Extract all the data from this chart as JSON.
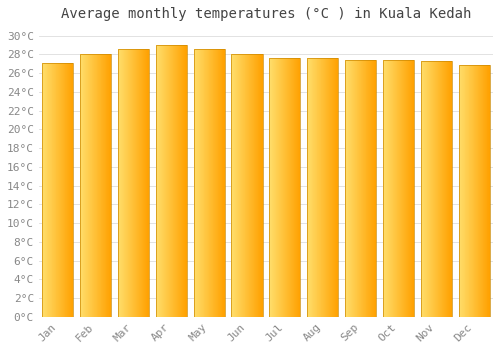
{
  "title": "Average monthly temperatures (°C ) in Kuala Kedah",
  "months": [
    "Jan",
    "Feb",
    "Mar",
    "Apr",
    "May",
    "Jun",
    "Jul",
    "Aug",
    "Sep",
    "Oct",
    "Nov",
    "Dec"
  ],
  "values": [
    27.1,
    28.0,
    28.6,
    29.0,
    28.6,
    28.0,
    27.6,
    27.6,
    27.4,
    27.4,
    27.3,
    26.9
  ],
  "bar_color_left": "#FFD966",
  "bar_color_right": "#FFA000",
  "bar_color_edge": "#CC8800",
  "ylim": [
    0,
    31
  ],
  "ytick_step": 2,
  "background_color": "#FFFFFF",
  "grid_color": "#DDDDDD",
  "title_fontsize": 10,
  "tick_fontsize": 8,
  "font_family": "monospace",
  "bar_width": 0.82
}
